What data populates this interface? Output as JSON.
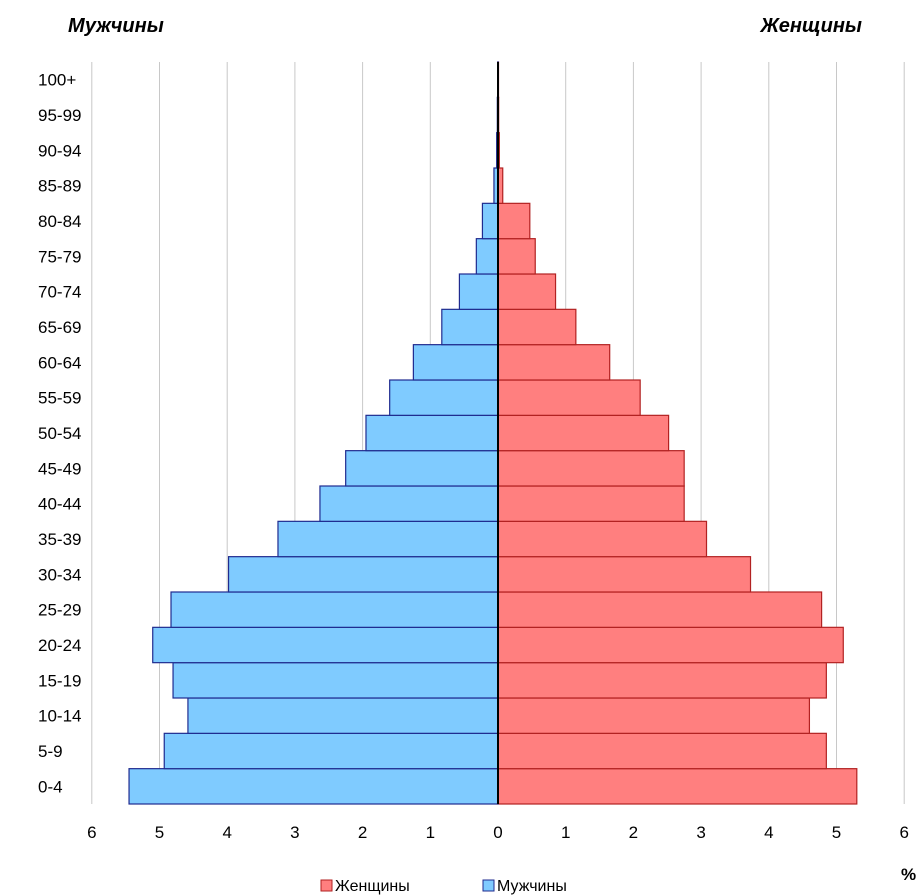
{
  "chart_data": {
    "type": "bar",
    "orientation": "horizontal",
    "layout": "population-pyramid",
    "left_title": "Мужчины",
    "right_title": "Женщины",
    "unit_label": "%",
    "categories": [
      "0-4",
      "5-9",
      "10-14",
      "15-19",
      "20-24",
      "25-29",
      "30-34",
      "35-39",
      "40-44",
      "45-49",
      "50-54",
      "55-59",
      "60-64",
      "65-69",
      "70-74",
      "75-79",
      "80-84",
      "85-89",
      "90-94",
      "95-99",
      "100+"
    ],
    "series": [
      {
        "name": "Женщины",
        "side": "right",
        "color": "#ff7f7f",
        "border": "#b22222",
        "values": [
          5.3,
          4.85,
          4.6,
          4.85,
          5.1,
          4.78,
          3.73,
          3.08,
          2.75,
          2.75,
          2.52,
          2.1,
          1.65,
          1.15,
          0.85,
          0.55,
          0.47,
          0.07,
          0.02,
          0.01,
          0.005
        ]
      },
      {
        "name": "Мужчины",
        "side": "left",
        "color": "#7fcbff",
        "border": "#1f2b8f",
        "values": [
          5.45,
          4.93,
          4.58,
          4.8,
          5.1,
          4.83,
          3.98,
          3.25,
          2.63,
          2.25,
          1.95,
          1.6,
          1.25,
          0.83,
          0.57,
          0.32,
          0.23,
          0.06,
          0.02,
          0.01,
          0.005
        ]
      }
    ],
    "x_ticks": [
      6,
      5,
      4,
      3,
      2,
      1,
      0,
      1,
      2,
      3,
      4,
      5,
      6
    ],
    "xlim": [
      -6,
      6
    ],
    "grid": "vertical",
    "legend_position": "bottom"
  }
}
